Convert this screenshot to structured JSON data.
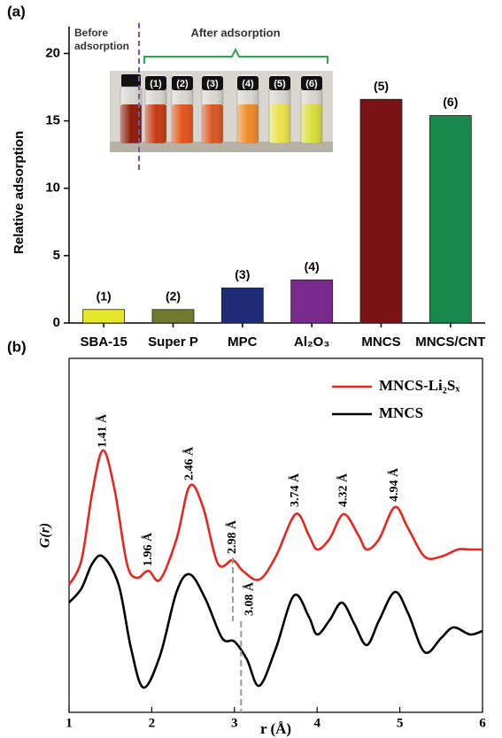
{
  "chart_data": [
    {
      "type": "bar",
      "panel_label": "(a)",
      "y_label": "Relative adsorption",
      "categories": [
        "SBA-15",
        "Super P",
        "MPC",
        "Al₂O₃",
        "MNCS",
        "MNCS/CNT"
      ],
      "values": [
        1,
        1,
        2.6,
        3.2,
        16.6,
        15.4
      ],
      "bar_labels": [
        "(1)",
        "(2)",
        "(3)",
        "(4)",
        "(5)",
        "(6)"
      ],
      "colors": [
        "#e6e62a",
        "#6f7a30",
        "#1f2c78",
        "#7a2a8c",
        "#7a1414",
        "#17884a"
      ],
      "ylim": [
        0,
        22
      ],
      "yticks": [
        0,
        5,
        10,
        15,
        20
      ],
      "annotations": {
        "before": "Before adsorption",
        "after": "After adsorption"
      },
      "inset_labels": [
        "(1)",
        "(2)",
        "(3)",
        "(4)",
        "(5)",
        "(6)"
      ]
    },
    {
      "type": "line",
      "panel_label": "(b)",
      "x_label": "r (Å)",
      "y_label": "G(r)",
      "series": [
        {
          "name": "MNCS-Li₂Sₓ",
          "color": "#e8261e",
          "x": [
            1.0,
            1.15,
            1.28,
            1.41,
            1.55,
            1.7,
            1.82,
            1.96,
            2.1,
            2.3,
            2.46,
            2.62,
            2.8,
            2.98,
            3.1,
            3.3,
            3.5,
            3.74,
            3.9,
            4.0,
            4.15,
            4.32,
            4.5,
            4.6,
            4.75,
            4.94,
            5.1,
            5.3,
            5.5,
            5.7,
            5.85,
            6.0
          ],
          "values": [
            3.6,
            4.3,
            6.2,
            7.4,
            6.3,
            4.2,
            3.8,
            4.0,
            3.75,
            4.9,
            6.4,
            5.8,
            4.2,
            4.3,
            4.0,
            3.75,
            4.4,
            5.6,
            5.0,
            4.6,
            4.9,
            5.6,
            5.0,
            4.6,
            4.9,
            5.8,
            5.2,
            4.4,
            4.4,
            4.6,
            4.6,
            4.6
          ]
        },
        {
          "name": "MNCS",
          "color": "#000000",
          "x": [
            1.0,
            1.15,
            1.28,
            1.41,
            1.6,
            1.75,
            1.9,
            2.1,
            2.3,
            2.46,
            2.65,
            2.85,
            3.0,
            3.15,
            3.3,
            3.5,
            3.72,
            3.9,
            4.0,
            4.15,
            4.3,
            4.45,
            4.6,
            4.75,
            4.94,
            5.1,
            5.3,
            5.5,
            5.65,
            5.85,
            6.0
          ],
          "values": [
            3.1,
            3.5,
            4.2,
            4.4,
            3.6,
            1.8,
            0.7,
            1.6,
            3.4,
            3.9,
            3.2,
            2.1,
            2.0,
            1.5,
            0.75,
            1.8,
            3.3,
            2.7,
            2.2,
            2.6,
            3.1,
            2.5,
            1.9,
            2.6,
            3.4,
            2.8,
            1.7,
            2.1,
            2.4,
            2.2,
            2.3
          ]
        }
      ],
      "xlim": [
        1,
        6
      ],
      "xticks": [
        1,
        2,
        3,
        4,
        5,
        6
      ],
      "ylim": [
        0,
        10
      ],
      "legend": "upper right",
      "peak_labels": [
        {
          "x": 1.41,
          "label": "1.41 Å"
        },
        {
          "x": 1.96,
          "label": "1.96 Å"
        },
        {
          "x": 2.46,
          "label": "2.46 Å"
        },
        {
          "x": 2.98,
          "label": "2.98 Å"
        },
        {
          "x": 3.08,
          "label": "3.08 Å"
        },
        {
          "x": 3.74,
          "label": "3.74 Å"
        },
        {
          "x": 4.32,
          "label": "4.32 Å"
        },
        {
          "x": 4.94,
          "label": "4.94 Å"
        }
      ]
    }
  ]
}
